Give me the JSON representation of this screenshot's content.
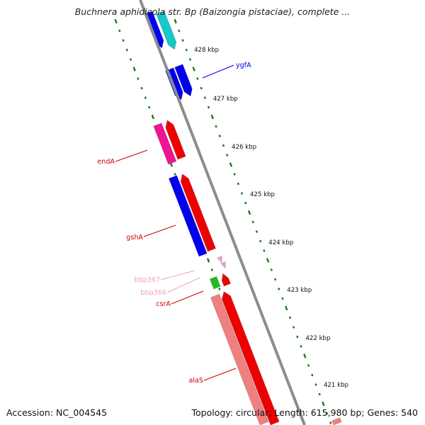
{
  "title": "Buchnera aphidicola str. Bp (Baizongia pistaciae), complete ...",
  "footer": {
    "accession": "Accession: NC_004545",
    "summary": "Topology: circular; Length: 615,980 bp; Genes: 540"
  },
  "colors": {
    "backbone": "#8c8c8c",
    "tick": "#1a7a1a",
    "blue": "#0000ee",
    "cyan": "#16c8c8",
    "red": "#ee0000",
    "magenta": "#ee1493",
    "salmon": "#f08080",
    "green": "#22bb22",
    "pink": "#f0a0c8"
  },
  "ticks": [
    {
      "label": "428 kbp"
    },
    {
      "label": "427 kbp"
    },
    {
      "label": "426 kbp"
    },
    {
      "label": "425 kbp"
    },
    {
      "label": "424 kbp"
    },
    {
      "label": "423 kbp"
    },
    {
      "label": "422 kbp"
    },
    {
      "label": "421 kbp"
    }
  ],
  "gene_labels": [
    {
      "name": "ygfA",
      "color": "#0000ee"
    },
    {
      "name": "endA",
      "color": "#cc0000"
    },
    {
      "name": "gshA",
      "color": "#cc0000"
    },
    {
      "name": "bbp367",
      "color": "#f0a0c8"
    },
    {
      "name": "bbp366",
      "color": "#f0a0c8"
    },
    {
      "name": "csrA",
      "color": "#cc0000"
    },
    {
      "name": "alaS",
      "color": "#cc0000"
    }
  ]
}
